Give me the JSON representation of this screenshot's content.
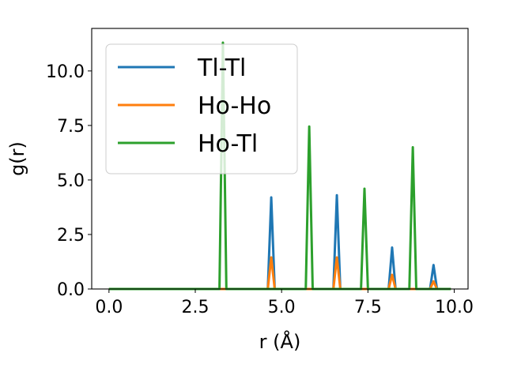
{
  "chart_data": {
    "type": "line",
    "title": "",
    "xlabel": "r (Å)",
    "ylabel": "g(r)",
    "xlim": [
      -0.5,
      10.4
    ],
    "ylim": [
      0,
      11.95
    ],
    "xticks": [
      0.0,
      2.5,
      5.0,
      7.5,
      10.0
    ],
    "xtick_labels": [
      "0.0",
      "2.5",
      "5.0",
      "7.5",
      "10.0"
    ],
    "yticks": [
      0.0,
      2.5,
      5.0,
      7.5,
      10.0
    ],
    "ytick_labels": [
      "0.0",
      "2.5",
      "5.0",
      "7.5",
      "10.0"
    ],
    "grid": false,
    "legend_position": "top-left",
    "series": [
      {
        "name": "Tl-Tl",
        "color": "#1f77b4",
        "x": [
          0.0,
          4.6,
          4.7,
          4.8,
          6.5,
          6.6,
          6.7,
          8.1,
          8.2,
          8.3,
          9.3,
          9.4,
          9.5,
          9.9
        ],
        "y": [
          0.0,
          0.0,
          4.2,
          0.0,
          0.0,
          4.3,
          0.0,
          0.0,
          1.9,
          0.0,
          0.0,
          1.1,
          0.0,
          0.0
        ]
      },
      {
        "name": "Ho-Ho",
        "color": "#ff7f0e",
        "x": [
          0.0,
          4.6,
          4.7,
          4.8,
          6.5,
          6.6,
          6.7,
          8.1,
          8.2,
          8.3,
          9.3,
          9.4,
          9.5,
          9.9
        ],
        "y": [
          0.0,
          0.0,
          1.45,
          0.0,
          0.0,
          1.45,
          0.0,
          0.0,
          0.65,
          0.0,
          0.0,
          0.35,
          0.0,
          0.0
        ]
      },
      {
        "name": "Ho-Tl",
        "color": "#2ca02c",
        "x": [
          0.0,
          3.2,
          3.3,
          3.4,
          5.7,
          5.8,
          5.9,
          7.3,
          7.4,
          7.5,
          8.7,
          8.8,
          8.9,
          9.9
        ],
        "y": [
          0.0,
          0.0,
          11.3,
          0.0,
          0.0,
          7.45,
          0.0,
          0.0,
          4.6,
          0.0,
          0.0,
          6.5,
          0.0,
          0.0
        ]
      }
    ]
  }
}
